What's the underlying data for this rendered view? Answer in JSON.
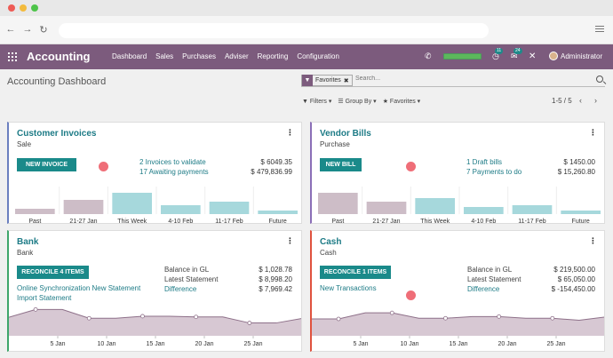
{
  "browser": {
    "url": ""
  },
  "navbar": {
    "app_title": "Accounting",
    "menu": [
      "Dashboard",
      "Sales",
      "Purchases",
      "Adviser",
      "Reporting",
      "Configuration"
    ],
    "activity_badge": "11",
    "chat_badge": "24",
    "user": "Administrator"
  },
  "page_title": "Accounting Dashboard",
  "search": {
    "facet": "Favorites",
    "placeholder": "Search..."
  },
  "filters": {
    "filters": "Filters",
    "group_by": "Group By",
    "favorites": "Favorites"
  },
  "pager": {
    "range": "1-5 / 5"
  },
  "cards": {
    "invoices": {
      "title": "Customer Invoices",
      "subtitle": "Sale",
      "button": "NEW INVOICE",
      "lines": [
        {
          "label": "2 Invoices to validate",
          "amount": "$ 6049.35"
        },
        {
          "label": "17 Awaiting payments",
          "amount": "$ 479,836.99"
        }
      ],
      "chart_data": {
        "type": "bar",
        "categories": [
          "Past",
          "21-27 Jan",
          "This Week",
          "4-10 Feb",
          "11-17 Feb",
          "Future"
        ],
        "values": [
          3,
          8,
          12,
          5,
          7,
          2
        ],
        "colors": [
          "#cdbdc7",
          "#cdbdc7",
          "#a6d8dc",
          "#a6d8dc",
          "#a6d8dc",
          "#a6d8dc"
        ],
        "accent": "#6b7fbf"
      }
    },
    "bills": {
      "title": "Vendor Bills",
      "subtitle": "Purchase",
      "button": "NEW BILL",
      "lines": [
        {
          "label": "1 Draft bills",
          "amount": "$ 1450.00"
        },
        {
          "label": "7 Payments to do",
          "amount": "$ 15,260.80"
        }
      ],
      "chart_data": {
        "type": "bar",
        "categories": [
          "Past",
          "21-27 Jan",
          "This Week",
          "4-10 Feb",
          "11-17 Feb",
          "Future"
        ],
        "values": [
          12,
          7,
          9,
          4,
          5,
          2
        ],
        "colors": [
          "#cdbdc7",
          "#cdbdc7",
          "#a6d8dc",
          "#a6d8dc",
          "#a6d8dc",
          "#a6d8dc"
        ],
        "accent": "#8b6fb7"
      }
    },
    "bank": {
      "title": "Bank",
      "subtitle": "Bank",
      "button": "RECONCILE 4 ITEMS",
      "links": [
        "Online Synchronization New Statement",
        "Import Statement"
      ],
      "rows": [
        {
          "label": "Balance in GL",
          "amount": "$ 1,028.78",
          "is_link": false
        },
        {
          "label": "Latest Statement",
          "amount": "$ 8,998.20",
          "is_link": false
        },
        {
          "label": "Difference",
          "amount": "$ 7,969.42",
          "is_link": true
        }
      ],
      "chart_data": {
        "type": "area",
        "x_labels": [
          "5 Jan",
          "10 Jan",
          "15 Jan",
          "20 Jan",
          "25 Jan"
        ],
        "values": [
          0.55,
          0.78,
          0.78,
          0.52,
          0.52,
          0.58,
          0.58,
          0.56,
          0.56,
          0.38,
          0.38,
          0.52
        ],
        "accent": "#3ea66b"
      }
    },
    "cash": {
      "title": "Cash",
      "subtitle": "Cash",
      "button": "RECONCILE 1 ITEMS",
      "links": [
        "New Transactions"
      ],
      "rows": [
        {
          "label": "Balance in GL",
          "amount": "$ 219,500.00",
          "is_link": false
        },
        {
          "label": "Latest Statement",
          "amount": "$ 65,050.00",
          "is_link": false
        },
        {
          "label": "Difference",
          "amount": "$ -154,450.00",
          "is_link": true
        }
      ],
      "chart_data": {
        "type": "area",
        "x_labels": [
          "5 Jan",
          "10 Jan",
          "15 Jan",
          "20 Jan",
          "25 Jan"
        ],
        "values": [
          0.5,
          0.5,
          0.68,
          0.68,
          0.52,
          0.52,
          0.57,
          0.57,
          0.52,
          0.52,
          0.46,
          0.56
        ],
        "accent": "#e0523e"
      }
    }
  }
}
